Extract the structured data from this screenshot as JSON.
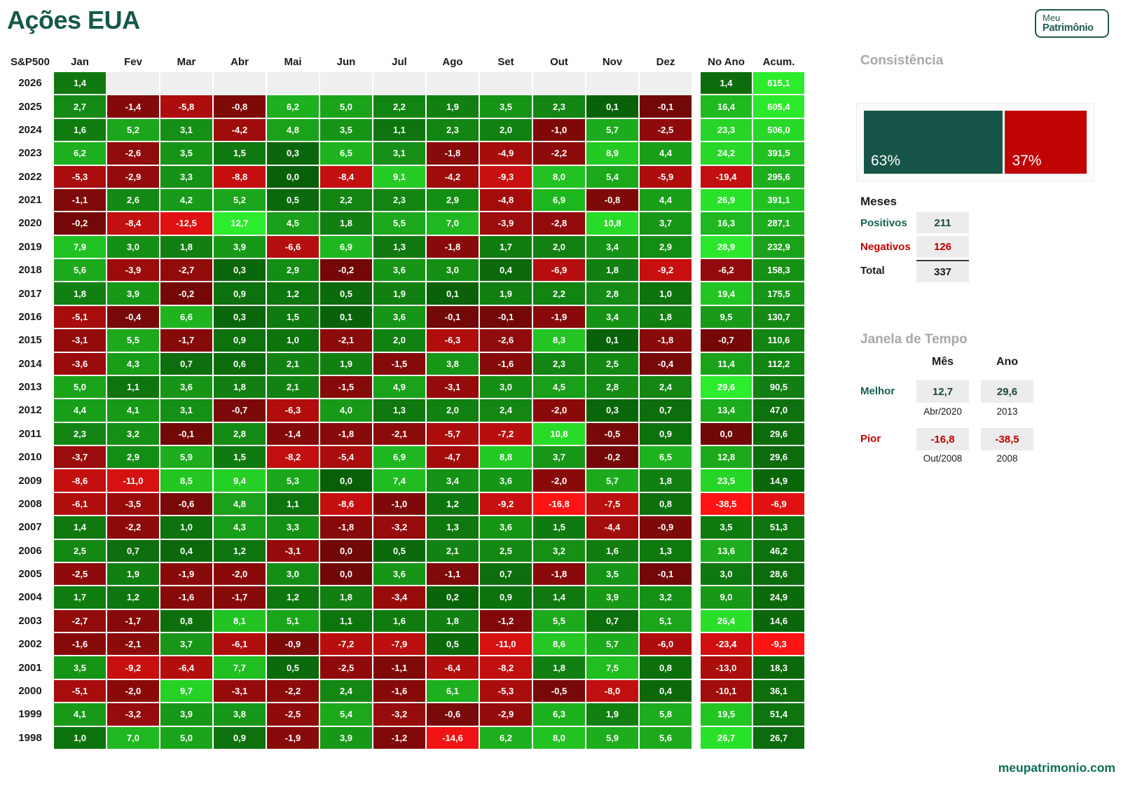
{
  "title": "Ações EUA",
  "logo": {
    "line1": "Meu",
    "line2": "Patrimônio"
  },
  "footer": "meupatrimonio.com",
  "chart_data": {
    "type": "heatmap",
    "title": "Ações EUA",
    "index_label": "S&P500",
    "columns": [
      "Jan",
      "Fev",
      "Mar",
      "Abr",
      "Mai",
      "Jun",
      "Jul",
      "Ago",
      "Set",
      "Out",
      "Nov",
      "Dez"
    ],
    "summary_columns": [
      "No Ano",
      "Acum."
    ],
    "scales": {
      "month": {
        "min": -16.8,
        "max": 12.7
      },
      "no_ano": {
        "min": -38.5,
        "max": 29.6
      },
      "acum": {
        "min": -9.3,
        "max": 615.1
      }
    },
    "colors": {
      "pos_low": [
        8,
        94,
        8
      ],
      "pos_high": [
        45,
        235,
        45
      ],
      "neg_low": [
        112,
        8,
        8
      ],
      "neg_high": [
        255,
        20,
        20
      ],
      "empty": "#efefef"
    },
    "rows": [
      {
        "year": "2026",
        "months": [
          1.4,
          null,
          null,
          null,
          null,
          null,
          null,
          null,
          null,
          null,
          null,
          null
        ],
        "no_ano": 1.4,
        "acum": 615.1
      },
      {
        "year": "2025",
        "months": [
          2.7,
          -1.4,
          -5.8,
          -0.8,
          6.2,
          5.0,
          2.2,
          1.9,
          3.5,
          2.3,
          0.1,
          -0.1
        ],
        "no_ano": 16.4,
        "acum": 605.4
      },
      {
        "year": "2024",
        "months": [
          1.6,
          5.2,
          3.1,
          -4.2,
          4.8,
          3.5,
          1.1,
          2.3,
          2.0,
          -1.0,
          5.7,
          -2.5
        ],
        "no_ano": 23.3,
        "acum": 506.0
      },
      {
        "year": "2023",
        "months": [
          6.2,
          -2.6,
          3.5,
          1.5,
          0.3,
          6.5,
          3.1,
          -1.8,
          -4.9,
          -2.2,
          8.9,
          4.4
        ],
        "no_ano": 24.2,
        "acum": 391.5
      },
      {
        "year": "2022",
        "months": [
          -5.3,
          -2.9,
          3.3,
          -8.8,
          0.01,
          -8.4,
          9.1,
          -4.2,
          -9.3,
          8.0,
          5.4,
          -5.9
        ],
        "no_ano": -19.4,
        "acum": 295.6
      },
      {
        "year": "2021",
        "months": [
          -1.1,
          2.6,
          4.2,
          5.2,
          0.5,
          2.2,
          2.3,
          2.9,
          -4.8,
          6.9,
          -0.8,
          4.4
        ],
        "no_ano": 26.9,
        "acum": 391.1
      },
      {
        "year": "2020",
        "months": [
          -0.2,
          -8.4,
          -12.5,
          12.7,
          4.5,
          1.8,
          5.5,
          7.0,
          -3.9,
          -2.8,
          10.8,
          3.7
        ],
        "no_ano": 16.3,
        "acum": 287.1
      },
      {
        "year": "2019",
        "months": [
          7.9,
          3.0,
          1.8,
          3.9,
          -6.6,
          6.9,
          1.3,
          -1.8,
          1.7,
          2.0,
          3.4,
          2.9
        ],
        "no_ano": 28.9,
        "acum": 232.9
      },
      {
        "year": "2018",
        "months": [
          5.6,
          -3.9,
          -2.7,
          0.3,
          2.9,
          -0.2,
          3.6,
          3.0,
          0.4,
          -6.9,
          1.8,
          -9.2
        ],
        "no_ano": -6.2,
        "acum": 158.3
      },
      {
        "year": "2017",
        "months": [
          1.8,
          3.9,
          -0.2,
          0.9,
          1.2,
          0.5,
          1.9,
          0.1,
          1.9,
          2.2,
          2.8,
          1.0
        ],
        "no_ano": 19.4,
        "acum": 175.5
      },
      {
        "year": "2016",
        "months": [
          -5.1,
          -0.4,
          6.6,
          0.3,
          1.5,
          0.1,
          3.6,
          -0.1,
          -0.1,
          -1.9,
          3.4,
          1.8
        ],
        "no_ano": 9.5,
        "acum": 130.7
      },
      {
        "year": "2015",
        "months": [
          -3.1,
          5.5,
          -1.7,
          0.9,
          1.0,
          -2.1,
          2.0,
          -6.3,
          -2.6,
          8.3,
          0.1,
          -1.8
        ],
        "no_ano": -0.7,
        "acum": 110.6
      },
      {
        "year": "2014",
        "months": [
          -3.6,
          4.3,
          0.7,
          0.6,
          2.1,
          1.9,
          -1.5,
          3.8,
          -1.6,
          2.3,
          2.5,
          -0.4
        ],
        "no_ano": 11.4,
        "acum": 112.2
      },
      {
        "year": "2013",
        "months": [
          5.0,
          1.1,
          3.6,
          1.8,
          2.1,
          -1.5,
          4.9,
          -3.1,
          3.0,
          4.5,
          2.8,
          2.4
        ],
        "no_ano": 29.6,
        "acum": 90.5
      },
      {
        "year": "2012",
        "months": [
          4.4,
          4.1,
          3.1,
          -0.7,
          -6.3,
          4.0,
          1.3,
          2.0,
          2.4,
          -2.0,
          0.3,
          0.7
        ],
        "no_ano": 13.4,
        "acum": 47.0
      },
      {
        "year": "2011",
        "months": [
          2.3,
          3.2,
          -0.1,
          2.8,
          -1.4,
          -1.8,
          -2.1,
          -5.7,
          -7.2,
          10.8,
          -0.5,
          0.9
        ],
        "no_ano": -0.01,
        "acum": 29.6
      },
      {
        "year": "2010",
        "months": [
          -3.7,
          2.9,
          5.9,
          1.5,
          -8.2,
          -5.4,
          6.9,
          -4.7,
          8.8,
          3.7,
          -0.2,
          6.5
        ],
        "no_ano": 12.8,
        "acum": 29.6
      },
      {
        "year": "2009",
        "months": [
          -8.6,
          -11.0,
          8.5,
          9.4,
          5.3,
          0.01,
          7.4,
          3.4,
          3.6,
          -2.0,
          5.7,
          1.8
        ],
        "no_ano": 23.5,
        "acum": 14.9
      },
      {
        "year": "2008",
        "months": [
          -6.1,
          -3.5,
          -0.6,
          4.8,
          1.1,
          -8.6,
          -1.0,
          1.2,
          -9.2,
          -16.8,
          -7.5,
          0.8
        ],
        "no_ano": -38.5,
        "acum": -6.9
      },
      {
        "year": "2007",
        "months": [
          1.4,
          -2.2,
          1.0,
          4.3,
          3.3,
          -1.8,
          -3.2,
          1.3,
          3.6,
          1.5,
          -4.4,
          -0.9
        ],
        "no_ano": 3.5,
        "acum": 51.3
      },
      {
        "year": "2006",
        "months": [
          2.5,
          0.7,
          0.4,
          1.2,
          -3.1,
          -0.01,
          0.5,
          2.1,
          2.5,
          3.2,
          1.6,
          1.3
        ],
        "no_ano": 13.6,
        "acum": 46.2
      },
      {
        "year": "2005",
        "months": [
          -2.5,
          1.9,
          -1.9,
          -2.0,
          3.0,
          -0.01,
          3.6,
          -1.1,
          0.7,
          -1.8,
          3.5,
          -0.1
        ],
        "no_ano": 3.0,
        "acum": 28.6
      },
      {
        "year": "2004",
        "months": [
          1.7,
          1.2,
          -1.6,
          -1.7,
          1.2,
          1.8,
          -3.4,
          0.2,
          0.9,
          1.4,
          3.9,
          3.2
        ],
        "no_ano": 9.0,
        "acum": 24.9
      },
      {
        "year": "2003",
        "months": [
          -2.7,
          -1.7,
          0.8,
          8.1,
          5.1,
          1.1,
          1.6,
          1.8,
          -1.2,
          5.5,
          0.7,
          5.1
        ],
        "no_ano": 26.4,
        "acum": 14.6
      },
      {
        "year": "2002",
        "months": [
          -1.6,
          -2.1,
          3.7,
          -6.1,
          -0.9,
          -7.2,
          -7.9,
          0.5,
          -11.0,
          8.6,
          5.7,
          -6.0
        ],
        "no_ano": -23.4,
        "acum": -9.3
      },
      {
        "year": "2001",
        "months": [
          3.5,
          -9.2,
          -6.4,
          7.7,
          0.5,
          -2.5,
          -1.1,
          -6.4,
          -8.2,
          1.8,
          7.5,
          0.8
        ],
        "no_ano": -13.0,
        "acum": 18.3
      },
      {
        "year": "2000",
        "months": [
          -5.1,
          -2.0,
          9.7,
          -3.1,
          -2.2,
          2.4,
          -1.6,
          6.1,
          -5.3,
          -0.5,
          -8.0,
          0.4
        ],
        "no_ano": -10.1,
        "acum": 36.1
      },
      {
        "year": "1999",
        "months": [
          4.1,
          -3.2,
          3.9,
          3.8,
          -2.5,
          5.4,
          -3.2,
          -0.6,
          -2.9,
          6.3,
          1.9,
          5.8
        ],
        "no_ano": 19.5,
        "acum": 51.4
      },
      {
        "year": "1998",
        "months": [
          1.0,
          7.0,
          5.0,
          0.9,
          -1.9,
          3.9,
          -1.2,
          -14.6,
          6.2,
          8.0,
          5.9,
          5.6
        ],
        "no_ano": 26.7,
        "acum": 26.7
      }
    ]
  },
  "consistency": {
    "heading": "Consistência",
    "positive_pct": 63,
    "negative_pct": 37,
    "positive_label": "63%",
    "negative_label": "37%",
    "positive_color": "#175549",
    "negative_color": "#c00404"
  },
  "months_summary": {
    "heading": "Meses",
    "positivos": {
      "label": "Positivos",
      "value": "211"
    },
    "negativos": {
      "label": "Negativos",
      "value": "126"
    },
    "total": {
      "label": "Total",
      "value": "337"
    }
  },
  "time_window": {
    "heading": "Janela de Tempo",
    "mes_header": "Mês",
    "ano_header": "Ano",
    "melhor": {
      "label": "Melhor",
      "mes": "12,7",
      "mes_sub": "Abr/2020",
      "ano": "29,6",
      "ano_sub": "2013"
    },
    "pior": {
      "label": "Pior",
      "mes": "-16,8",
      "mes_sub": "Out/2008",
      "ano": "-38,5",
      "ano_sub": "2008"
    }
  }
}
